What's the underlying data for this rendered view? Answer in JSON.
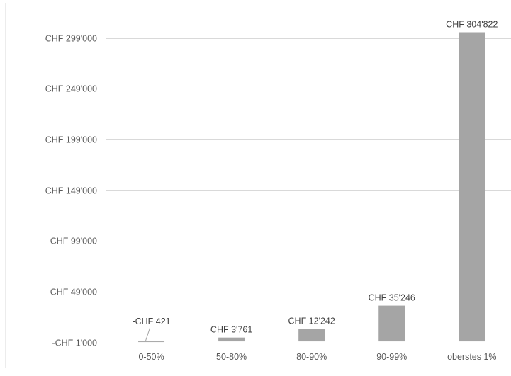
{
  "chart_data": {
    "type": "bar",
    "title": "",
    "xlabel": "",
    "ylabel": "",
    "categories": [
      "0-50%",
      "50-80%",
      "80-90%",
      "90-99%",
      "oberstes 1%"
    ],
    "values": [
      -421,
      3761,
      12242,
      35246,
      304822
    ],
    "data_labels": [
      "-CHF 421",
      "CHF 3'761",
      "CHF 12'242",
      "CHF 35'246",
      "CHF 304'822"
    ],
    "y_ticks": [
      -1000,
      49000,
      99000,
      149000,
      199000,
      249000,
      299000
    ],
    "y_tick_labels": [
      "-CHF 1'000",
      "CHF 49'000",
      "CHF 99'000",
      "CHF 149'000",
      "CHF 199'000",
      "CHF 249'000",
      "CHF 299'000"
    ],
    "ylim": [
      -1000,
      304822
    ],
    "grid": true,
    "legend": "none",
    "bar_color": "#a5a5a5"
  }
}
